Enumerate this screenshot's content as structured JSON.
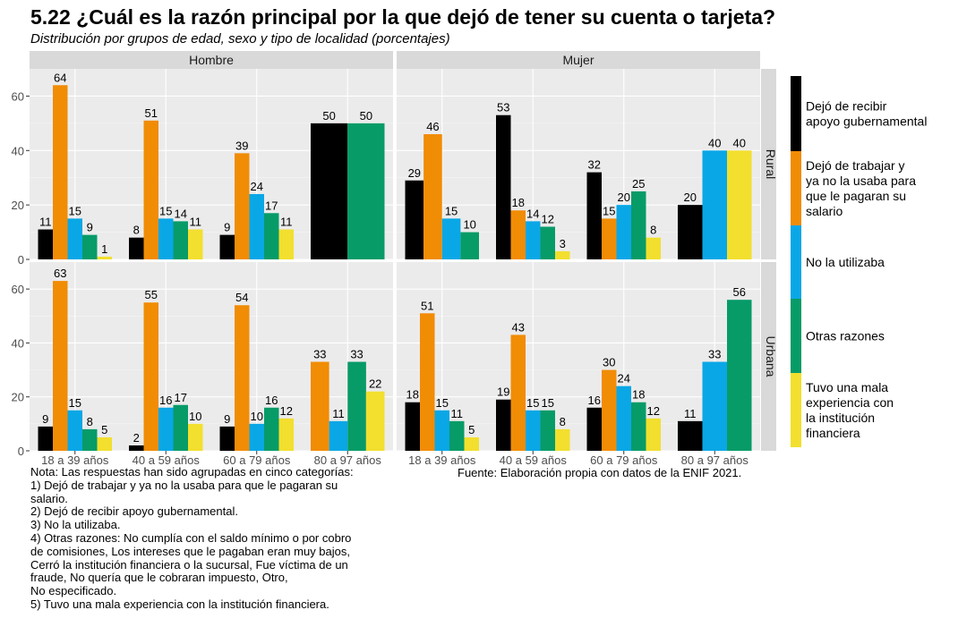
{
  "title": "5.22 ¿Cuál es la razón principal por la que dejó de tener su cuenta o tarjeta?",
  "subtitle": "Distribución por grupos de edad, sexo y tipo de localidad (porcentajes)",
  "note": "Nota: Las respuestas han sido agrupadas en cinco categorías:\n1) Dejó de trabajar y ya no la usaba para que le pagaran su\n    salario.\n2) Dejó de recibir apoyo gubernamental.\n3) No la utilizaba.\n4) Otras razones: No cumplía con el saldo mínimo o por cobro\n    de comisiones, Los intereses que le pagaban eran muy bajos,\n    Cerró la institución financiera o la sucursal, Fue víctima de un\n    fraude, No quería que le cobraran impuesto, Otro,\n    No especificado.\n5) Tuvo una mala experiencia con la institución financiera.",
  "source": "Fuente: Elaboración propia con datos de la ENIF 2021.",
  "chart_data": {
    "type": "bar",
    "facet_columns": [
      "Hombre",
      "Mujer"
    ],
    "facet_rows": [
      "Rural",
      "Urbana"
    ],
    "categories": [
      "18 a 39 años",
      "40 a 59 años",
      "60 a 79 años",
      "80 a 97 años"
    ],
    "ylim": [
      0,
      70
    ],
    "yticks": [
      0,
      20,
      40,
      60
    ],
    "grid": true,
    "legend_position": "right",
    "series": [
      {
        "name": "Dejó de recibir apoyo gubernamental",
        "legend_lines": [
          "Dejó de recibir",
          "apoyo gubernamental"
        ],
        "color": "#000000"
      },
      {
        "name": "Dejó de trabajar y ya no la usaba para que le pagaran su salario",
        "legend_lines": [
          "Dejó de trabajar y",
          "ya no la usaba para",
          "que le pagaran su",
          "salario"
        ],
        "color": "#F18C05"
      },
      {
        "name": "No la utilizaba",
        "legend_lines": [
          "No la utilizaba"
        ],
        "color": "#0AA7E6"
      },
      {
        "name": "Otras razones",
        "legend_lines": [
          "Otras razones"
        ],
        "color": "#079B68"
      },
      {
        "name": "Tuvo una mala experiencia con la institución financiera",
        "legend_lines": [
          "Tuvo una mala",
          "experiencia con",
          "la institución",
          "financiera"
        ],
        "color": "#F2DF2E"
      }
    ],
    "panels": [
      {
        "row": "Rural",
        "col": "Hombre",
        "groups": [
          [
            11,
            64,
            15,
            9,
            1
          ],
          [
            8,
            51,
            15,
            14,
            11
          ],
          [
            9,
            39,
            24,
            17,
            11
          ],
          [
            50,
            null,
            null,
            50,
            null
          ]
        ]
      },
      {
        "row": "Rural",
        "col": "Mujer",
        "groups": [
          [
            29,
            46,
            15,
            10,
            null
          ],
          [
            53,
            18,
            14,
            12,
            3
          ],
          [
            32,
            15,
            20,
            25,
            8
          ],
          [
            20,
            null,
            40,
            null,
            40
          ]
        ]
      },
      {
        "row": "Urbana",
        "col": "Hombre",
        "groups": [
          [
            9,
            63,
            15,
            8,
            5
          ],
          [
            2,
            55,
            16,
            17,
            10
          ],
          [
            9,
            54,
            10,
            16,
            12
          ],
          [
            null,
            33,
            11,
            33,
            22
          ]
        ]
      },
      {
        "row": "Urbana",
        "col": "Mujer",
        "groups": [
          [
            18,
            51,
            15,
            11,
            5
          ],
          [
            19,
            43,
            15,
            15,
            8
          ],
          [
            16,
            30,
            24,
            18,
            12
          ],
          [
            11,
            null,
            33,
            56,
            null
          ]
        ]
      }
    ]
  }
}
